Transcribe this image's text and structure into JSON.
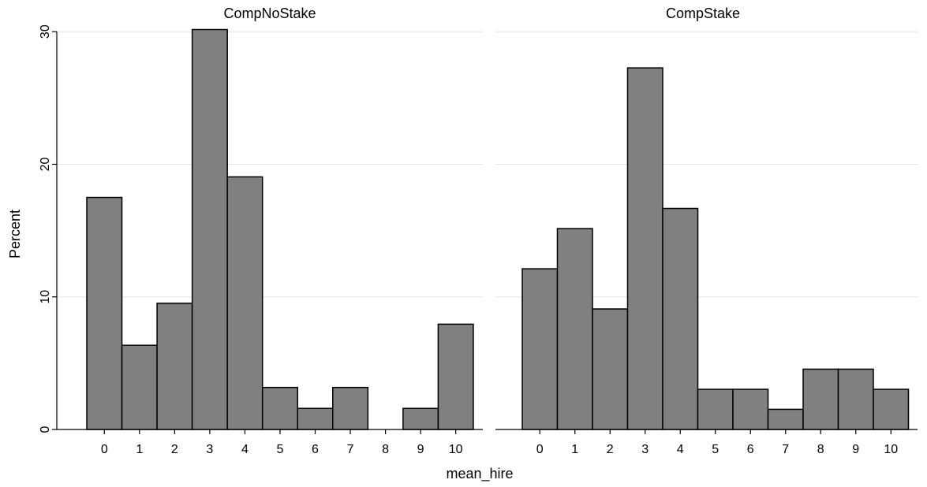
{
  "ylabel": "Percent",
  "xlabel": "mean_hire",
  "style": {
    "bar_fill": "#808080",
    "bar_stroke": "#000000",
    "grid_color": "#e6e6e6",
    "background": "#ffffff"
  },
  "chart_data": [
    {
      "type": "bar",
      "title": "CompNoStake",
      "categories": [
        "0",
        "1",
        "2",
        "3",
        "4",
        "5",
        "6",
        "7",
        "8",
        "9",
        "10"
      ],
      "values": [
        17.5,
        6.35,
        9.52,
        30.16,
        19.05,
        3.17,
        1.59,
        3.17,
        0,
        1.59,
        7.94
      ],
      "xlabel": "mean_hire",
      "ylabel": "Percent",
      "yticks": [
        "0",
        "10",
        "20",
        "30"
      ],
      "ylim": [
        0,
        31.2
      ],
      "grid": true
    },
    {
      "type": "bar",
      "title": "CompStake",
      "categories": [
        "0",
        "1",
        "2",
        "3",
        "4",
        "5",
        "6",
        "7",
        "8",
        "9",
        "10"
      ],
      "values": [
        12.12,
        15.15,
        9.09,
        27.27,
        16.67,
        3.03,
        3.03,
        1.52,
        4.55,
        4.55,
        3.03
      ],
      "xlabel": "mean_hire",
      "ylabel": "Percent",
      "yticks": [
        "0",
        "10",
        "20",
        "30"
      ],
      "ylim": [
        0,
        31.2
      ],
      "grid": true
    }
  ]
}
